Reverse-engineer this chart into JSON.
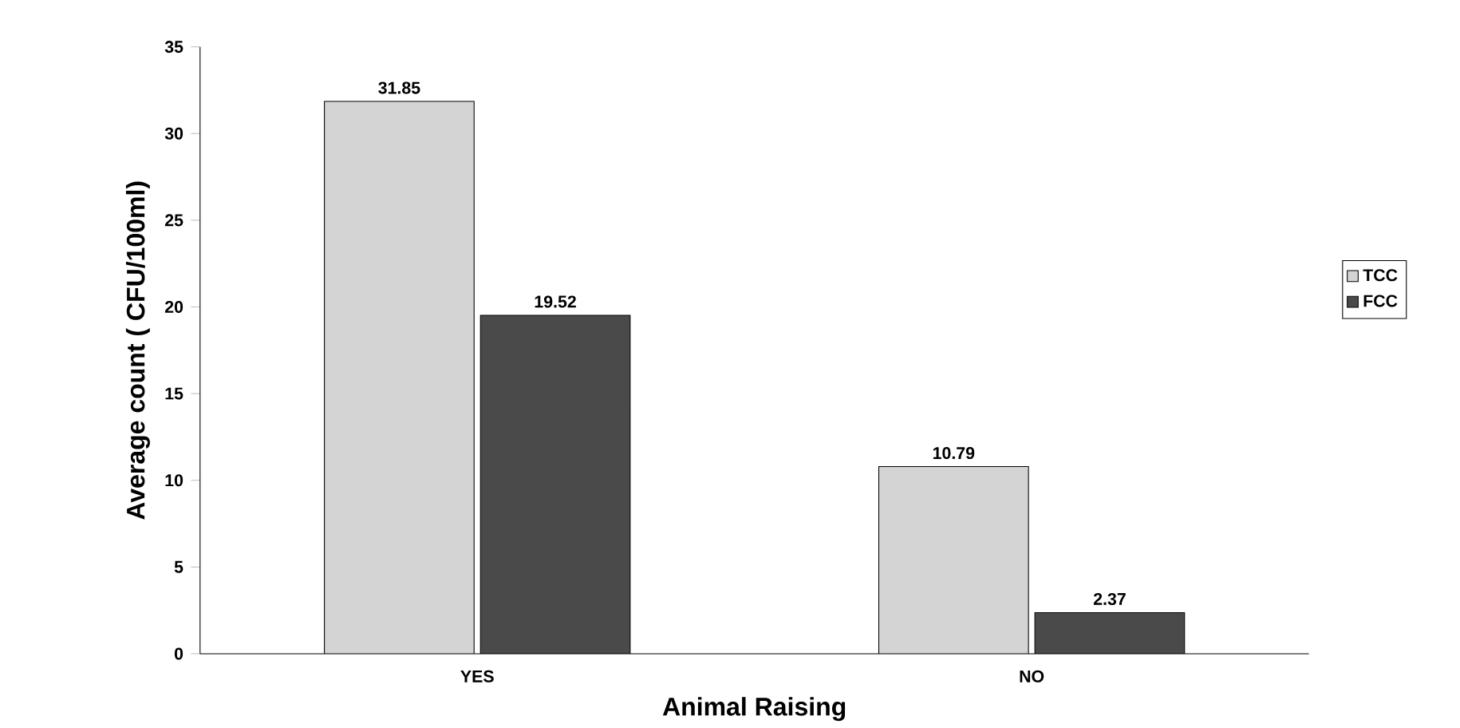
{
  "chart_data": {
    "type": "bar",
    "xlabel": "Animal Raising",
    "ylabel": "Average count ( CFU/100ml)",
    "categories": [
      "YES",
      "NO"
    ],
    "series": [
      {
        "name": "TCC",
        "color": "#d4d4d4",
        "values": [
          31.85,
          10.79
        ]
      },
      {
        "name": "FCC",
        "color": "#4a4a4a",
        "values": [
          19.52,
          2.37
        ]
      }
    ],
    "ylim": [
      0,
      35
    ],
    "yticks": [
      0,
      5,
      10,
      15,
      20,
      25,
      30,
      35
    ],
    "data_labels": true,
    "legend": "right",
    "grid": false
  }
}
